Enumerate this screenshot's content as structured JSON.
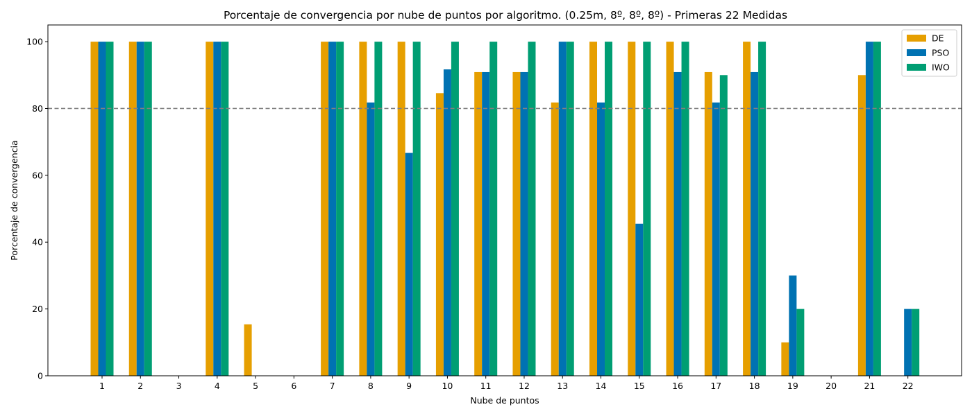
{
  "chart_data": {
    "type": "bar",
    "title": "Porcentaje de convergencia por nube de puntos por algoritmo. (0.25m, 8º, 8º, 8º) - Primeras 22 Medidas",
    "xlabel": "Nube de puntos",
    "ylabel": "Porcentaje de convergencia",
    "categories": [
      "1",
      "2",
      "3",
      "4",
      "5",
      "6",
      "7",
      "8",
      "9",
      "10",
      "11",
      "12",
      "13",
      "14",
      "15",
      "16",
      "17",
      "18",
      "19",
      "20",
      "21",
      "22"
    ],
    "series": [
      {
        "name": "DE",
        "color": "#E69F00",
        "values": [
          100,
          100,
          0,
          100,
          15.4,
          0,
          100,
          100,
          100,
          84.6,
          90.9,
          90.9,
          81.8,
          100,
          100,
          100,
          90.9,
          100,
          10,
          0,
          90,
          0
        ]
      },
      {
        "name": "PSO",
        "color": "#0072B2",
        "values": [
          100,
          100,
          0,
          100,
          0,
          0,
          100,
          81.8,
          66.7,
          91.7,
          90.9,
          90.9,
          100,
          81.8,
          45.5,
          90.9,
          81.8,
          90.9,
          30,
          0,
          100,
          20
        ]
      },
      {
        "name": "IWO",
        "color": "#009E73",
        "values": [
          100,
          100,
          0,
          100,
          0,
          0,
          100,
          100,
          100,
          100,
          100,
          100,
          100,
          100,
          100,
          100,
          90,
          100,
          20,
          0,
          100,
          20
        ]
      }
    ],
    "ylim": [
      0,
      105
    ],
    "yticks": [
      0,
      20,
      40,
      60,
      80,
      100
    ],
    "reference_line": {
      "y": 80,
      "style": "dashed",
      "color": "#808080"
    },
    "grid": false,
    "legend": "top-right"
  }
}
